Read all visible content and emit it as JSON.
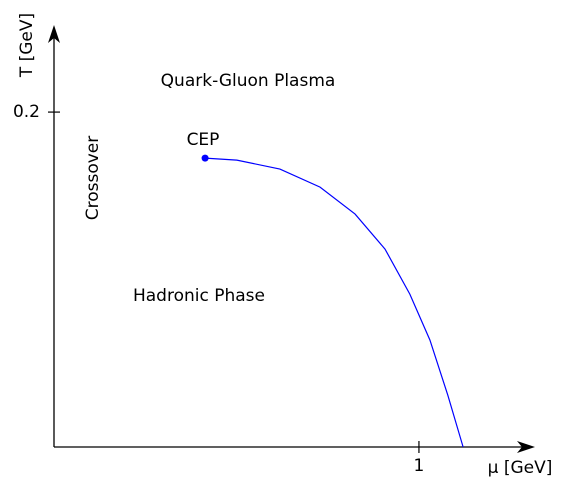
{
  "chart_data": {
    "type": "line",
    "xlabel": "μ [GeV]",
    "ylabel": "T [GeV]",
    "x": [
      0.414,
      0.501,
      0.619,
      0.729,
      0.825,
      0.907,
      0.975,
      1.03,
      1.079,
      1.121
    ],
    "series": [
      {
        "color": "#0000ff",
        "values": [
          0.1725,
          0.1713,
          0.166,
          0.1552,
          0.1391,
          0.1182,
          0.0913,
          0.0639,
          0.031,
          0
        ]
      }
    ],
    "xlim": [
      0,
      1.318
    ],
    "ylim": [
      0,
      0.252
    ],
    "xticks": [
      1
    ],
    "yticks": [
      0.2
    ],
    "annotations": [
      "Quark-Gluon Plasma",
      "CEP",
      "Crossover",
      "Hadronic Phase"
    ]
  }
}
